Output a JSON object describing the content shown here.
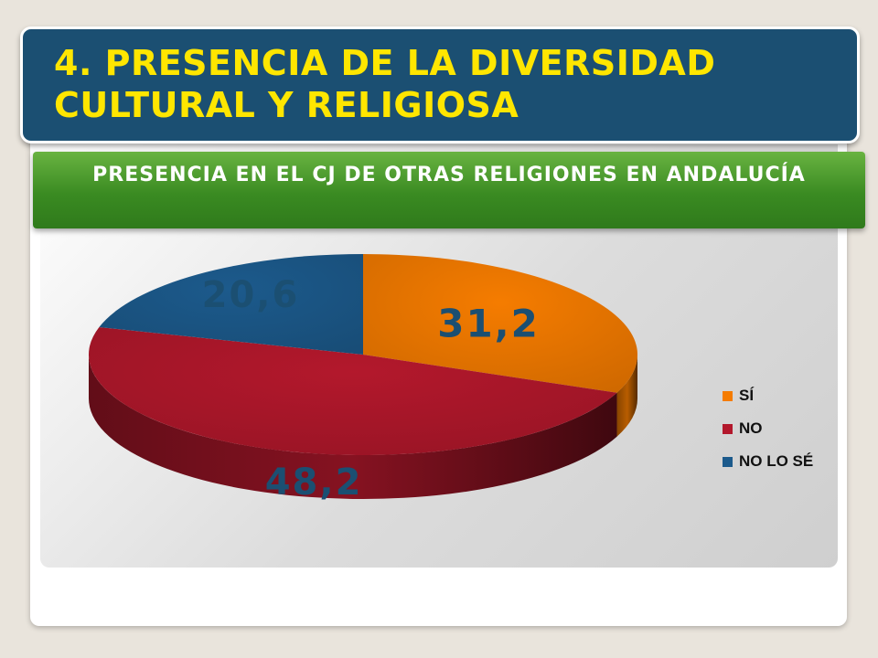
{
  "slide": {
    "title": "4. PRESENCIA DE LA DIVERSIDAD CULTURAL Y RELIGIOSA"
  },
  "chart_data": {
    "type": "pie",
    "title": "PRESENCIA EN EL CJ DE OTRAS RELIGIONES EN ANDALUCÍA",
    "categories": [
      "SÍ",
      "NO",
      "NO LO SÉ"
    ],
    "values": [
      31.2,
      48.2,
      20.6
    ],
    "data_labels": [
      "31,2",
      "48,2",
      "20,6"
    ],
    "colors": [
      "#f57c00",
      "#b3182c",
      "#1c5a8c"
    ],
    "legend_position": "right",
    "style": "3d"
  }
}
